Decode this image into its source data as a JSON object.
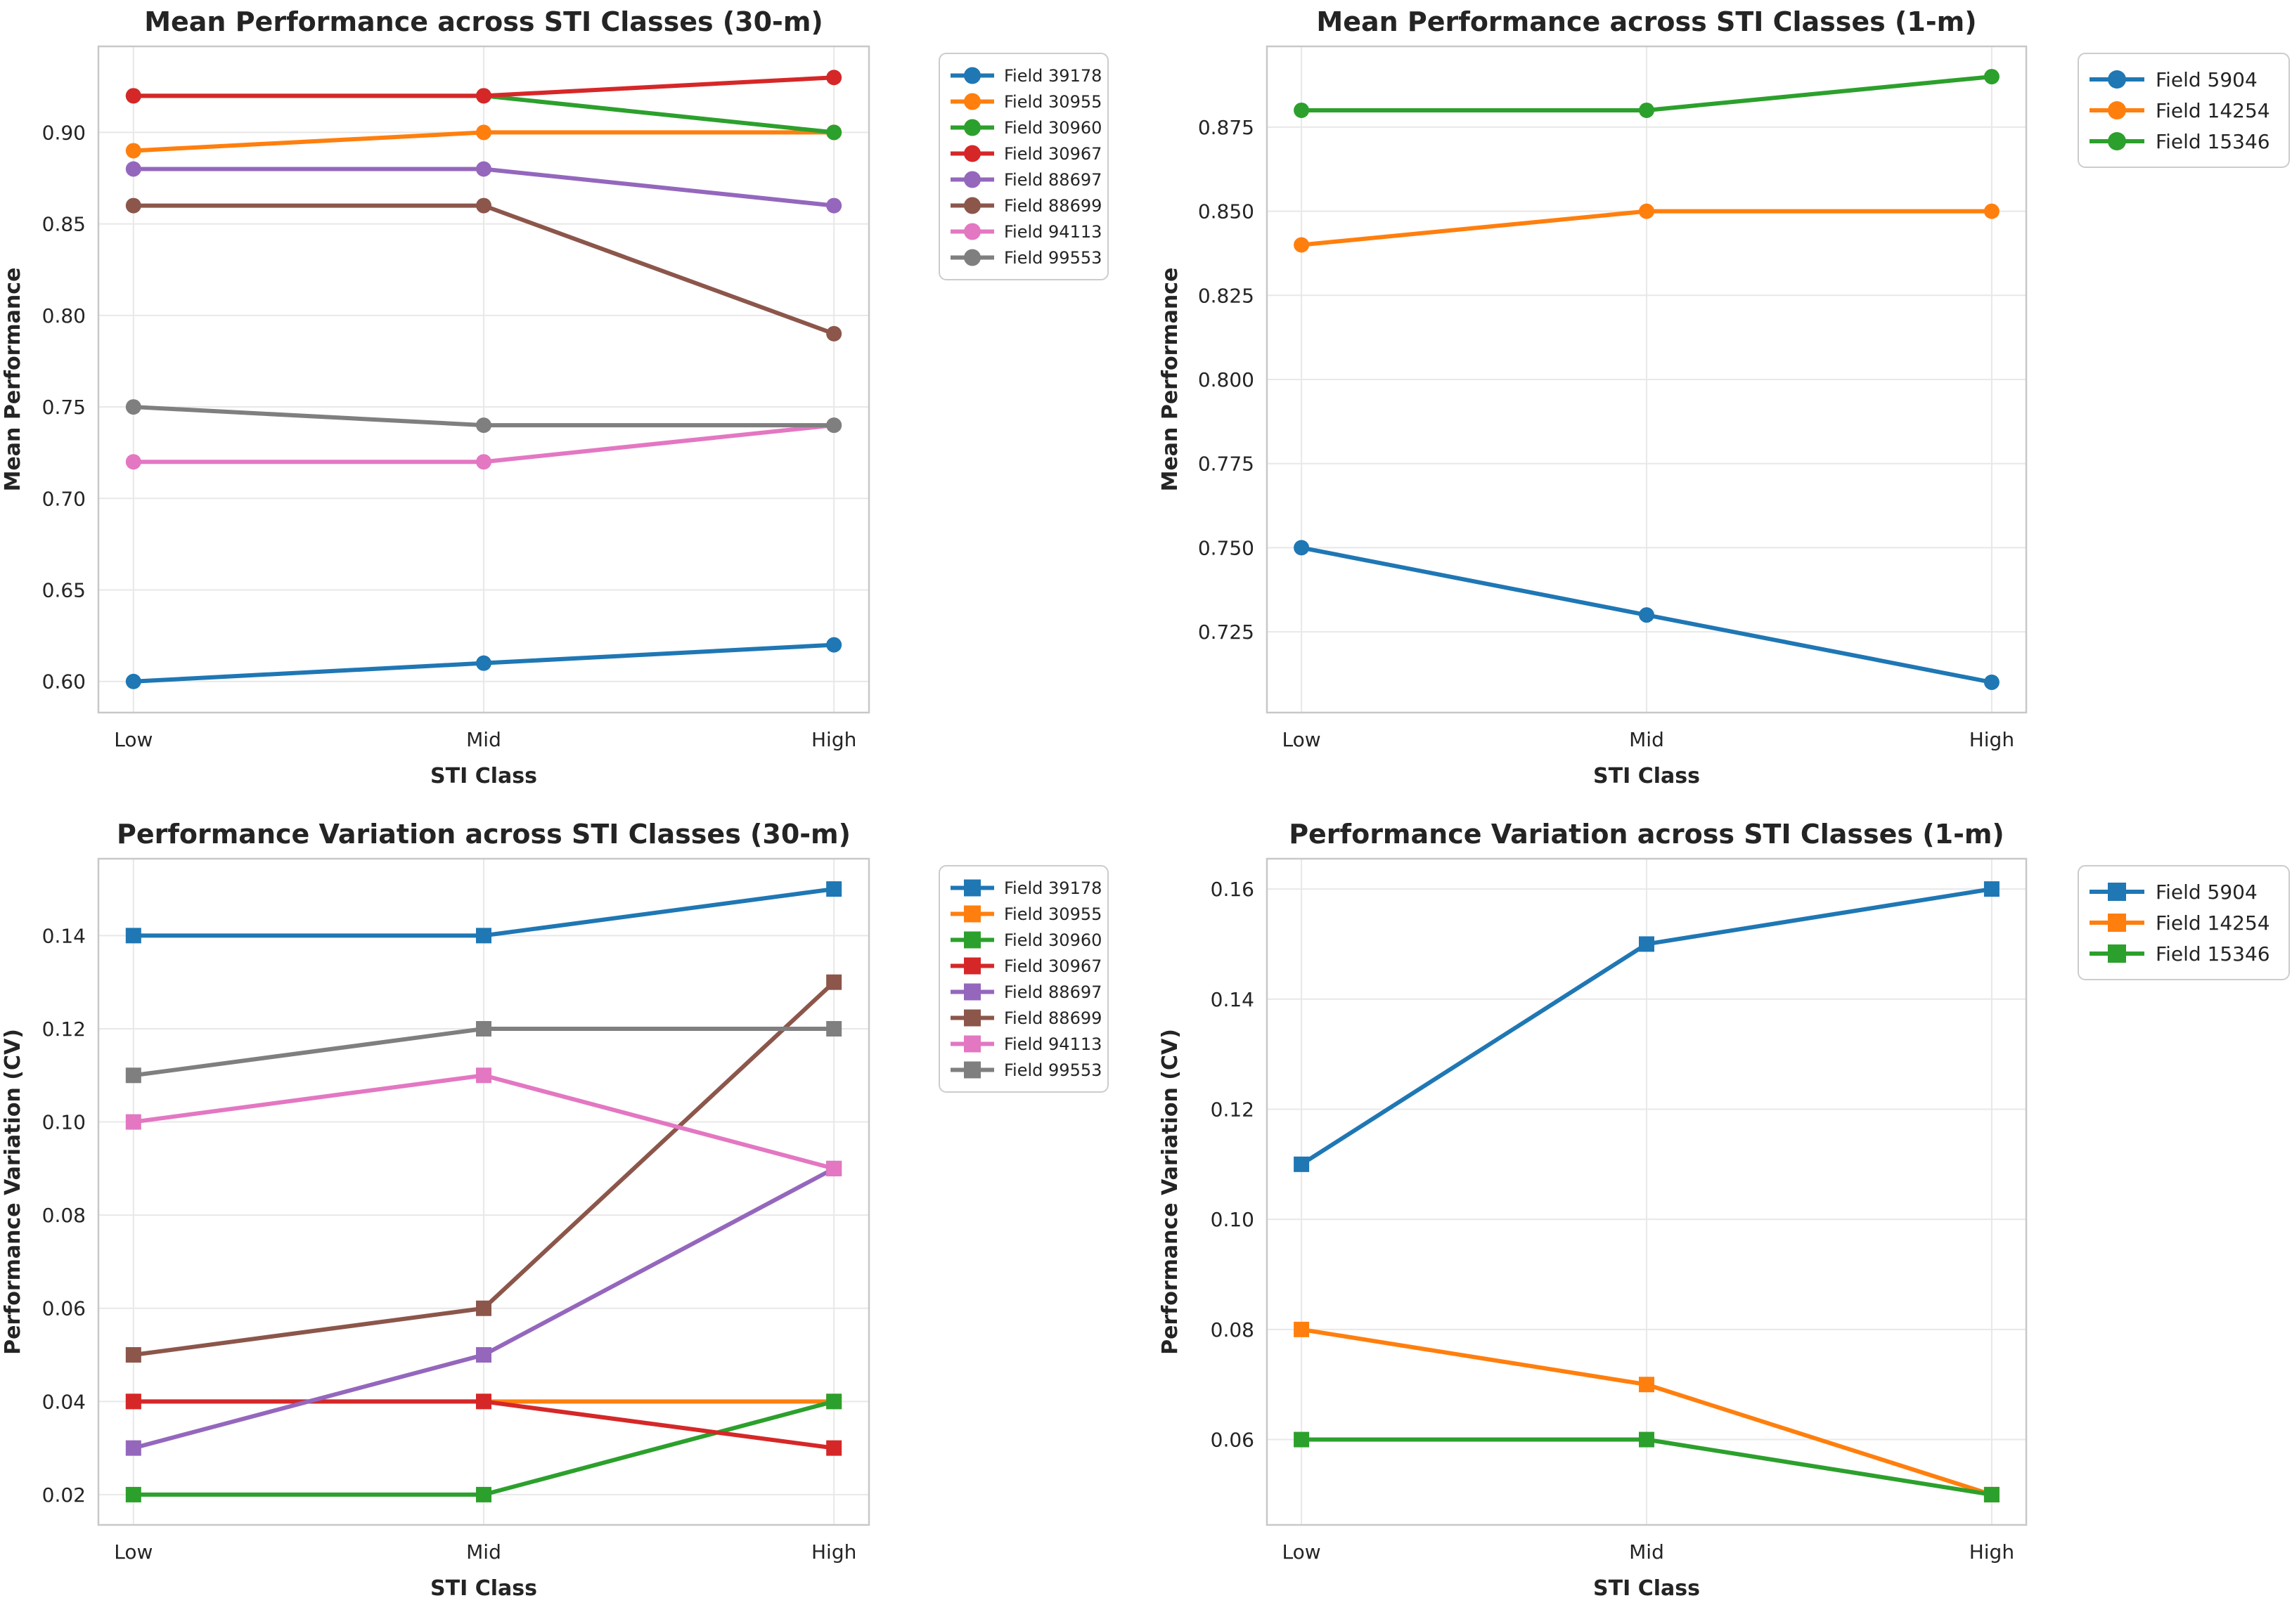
{
  "figure": {
    "background_color": "#ffffff",
    "grid_color": "#e8e8e8",
    "spine_color": "#c8c8c8",
    "text_color": "#242424",
    "legend_border_color": "#cccccc"
  },
  "chart_data": [
    {
      "id": "mean-performance-30m",
      "type": "line",
      "title": "Mean Performance across STI Classes (30-m)",
      "xlabel": "STI Class",
      "ylabel": "Mean Performance",
      "categories": [
        "Low",
        "Mid",
        "High"
      ],
      "marker": "circle",
      "grid": true,
      "legend_position": "right",
      "ylim": [
        0.583,
        0.947
      ],
      "ytick_values": [
        0.6,
        0.65,
        0.7,
        0.75,
        0.8,
        0.85,
        0.9
      ],
      "ytick_labels": [
        "0.60",
        "0.65",
        "0.70",
        "0.75",
        "0.80",
        "0.85",
        "0.90"
      ],
      "series": [
        {
          "name": "Field 39178",
          "color": "#1f77b4",
          "values": [
            0.6,
            0.61,
            0.62
          ]
        },
        {
          "name": "Field 30955",
          "color": "#ff7f0e",
          "values": [
            0.89,
            0.9,
            0.9
          ]
        },
        {
          "name": "Field 30960",
          "color": "#2ca02c",
          "values": [
            0.92,
            0.92,
            0.9
          ]
        },
        {
          "name": "Field 30967",
          "color": "#d62728",
          "values": [
            0.92,
            0.92,
            0.93
          ]
        },
        {
          "name": "Field 88697",
          "color": "#9467bd",
          "values": [
            0.88,
            0.88,
            0.86
          ]
        },
        {
          "name": "Field 88699",
          "color": "#8c564b",
          "values": [
            0.86,
            0.86,
            0.79
          ]
        },
        {
          "name": "Field 94113",
          "color": "#e377c2",
          "values": [
            0.72,
            0.72,
            0.74
          ]
        },
        {
          "name": "Field 99553",
          "color": "#7f7f7f",
          "values": [
            0.75,
            0.74,
            0.74
          ]
        }
      ]
    },
    {
      "id": "mean-performance-1m",
      "type": "line",
      "title": "Mean Performance across STI Classes (1-m)",
      "xlabel": "STI Class",
      "ylabel": "Mean Performance",
      "categories": [
        "Low",
        "Mid",
        "High"
      ],
      "marker": "circle",
      "grid": true,
      "legend_position": "right",
      "ylim": [
        0.701,
        0.899
      ],
      "ytick_values": [
        0.725,
        0.75,
        0.775,
        0.8,
        0.825,
        0.85,
        0.875
      ],
      "ytick_labels": [
        "0.725",
        "0.750",
        "0.775",
        "0.800",
        "0.825",
        "0.850",
        "0.875"
      ],
      "series": [
        {
          "name": "Field 5904",
          "color": "#1f77b4",
          "values": [
            0.75,
            0.73,
            0.71
          ]
        },
        {
          "name": "Field 14254",
          "color": "#ff7f0e",
          "values": [
            0.84,
            0.85,
            0.85
          ]
        },
        {
          "name": "Field 15346",
          "color": "#2ca02c",
          "values": [
            0.88,
            0.88,
            0.89
          ]
        }
      ]
    },
    {
      "id": "performance-variation-30m",
      "type": "line",
      "title": "Performance Variation across STI Classes (30-m)",
      "xlabel": "STI Class",
      "ylabel": "Performance Variation (CV)",
      "categories": [
        "Low",
        "Mid",
        "High"
      ],
      "marker": "square",
      "grid": true,
      "legend_position": "right",
      "ylim": [
        0.0135,
        0.1565
      ],
      "ytick_values": [
        0.02,
        0.04,
        0.06,
        0.08,
        0.1,
        0.12,
        0.14
      ],
      "ytick_labels": [
        "0.02",
        "0.04",
        "0.06",
        "0.08",
        "0.10",
        "0.12",
        "0.14"
      ],
      "series": [
        {
          "name": "Field 39178",
          "color": "#1f77b4",
          "values": [
            0.14,
            0.14,
            0.15
          ]
        },
        {
          "name": "Field 30955",
          "color": "#ff7f0e",
          "values": [
            0.04,
            0.04,
            0.04
          ]
        },
        {
          "name": "Field 30960",
          "color": "#2ca02c",
          "values": [
            0.02,
            0.02,
            0.04
          ]
        },
        {
          "name": "Field 30967",
          "color": "#d62728",
          "values": [
            0.04,
            0.04,
            0.03
          ]
        },
        {
          "name": "Field 88697",
          "color": "#9467bd",
          "values": [
            0.03,
            0.05,
            0.09
          ]
        },
        {
          "name": "Field 88699",
          "color": "#8c564b",
          "values": [
            0.05,
            0.06,
            0.13
          ]
        },
        {
          "name": "Field 94113",
          "color": "#e377c2",
          "values": [
            0.1,
            0.11,
            0.09
          ]
        },
        {
          "name": "Field 99553",
          "color": "#7f7f7f",
          "values": [
            0.11,
            0.12,
            0.12
          ]
        }
      ]
    },
    {
      "id": "performance-variation-1m",
      "type": "line",
      "title": "Performance Variation across STI Classes (1-m)",
      "xlabel": "STI Class",
      "ylabel": "Performance Variation (CV)",
      "categories": [
        "Low",
        "Mid",
        "High"
      ],
      "marker": "square",
      "grid": true,
      "legend_position": "right",
      "ylim": [
        0.0445,
        0.1655
      ],
      "ytick_values": [
        0.06,
        0.08,
        0.1,
        0.12,
        0.14,
        0.16
      ],
      "ytick_labels": [
        "0.06",
        "0.08",
        "0.10",
        "0.12",
        "0.14",
        "0.16"
      ],
      "series": [
        {
          "name": "Field 5904",
          "color": "#1f77b4",
          "values": [
            0.11,
            0.15,
            0.16
          ]
        },
        {
          "name": "Field 14254",
          "color": "#ff7f0e",
          "values": [
            0.08,
            0.07,
            0.05
          ]
        },
        {
          "name": "Field 15346",
          "color": "#2ca02c",
          "values": [
            0.06,
            0.06,
            0.05
          ]
        }
      ]
    }
  ]
}
